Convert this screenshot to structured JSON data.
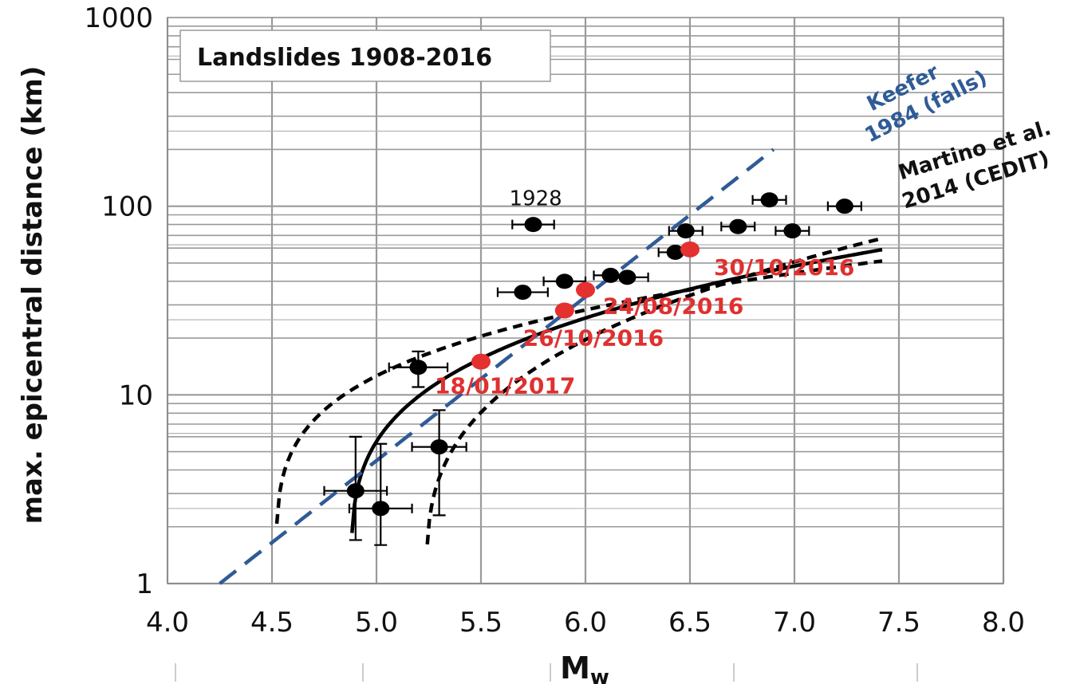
{
  "chart_data": {
    "type": "scatter",
    "title": "Landslides 1908-2016",
    "xlabel": "M",
    "xlabel_sub": "w",
    "ylabel": "max. epicentral distance (km)",
    "xlim": [
      4.0,
      8.0
    ],
    "ylim": [
      1,
      1000
    ],
    "yscale": "log",
    "grid": true,
    "x_ticks": [
      "4.0",
      "4.5",
      "5.0",
      "5.5",
      "6.0",
      "6.5",
      "7.0",
      "7.5",
      "8.0"
    ],
    "y_ticks": [
      "1",
      "10",
      "100",
      "1000"
    ],
    "colors": {
      "historical": "#000000",
      "recent": "#e53030",
      "keefer": "#2f5b96",
      "cedit": "#000000",
      "grid": "#9a9a9a"
    },
    "series": [
      {
        "kind": "historical",
        "points": [
          {
            "x": 4.9,
            "y": 3.1,
            "xerr": 0.15,
            "ylo": 1.7,
            "yhi": 6.0
          },
          {
            "x": 5.02,
            "y": 2.5,
            "xerr": 0.15,
            "ylo": 1.6,
            "yhi": 5.5
          },
          {
            "x": 5.2,
            "y": 14,
            "xerr": 0.14,
            "ylo": 11,
            "yhi": 17
          },
          {
            "x": 5.3,
            "y": 5.3,
            "xerr": 0.13,
            "ylo": 2.3,
            "yhi": 8.3
          },
          {
            "x": 5.7,
            "y": 35,
            "xerr": 0.12,
            "ylo": null,
            "yhi": null
          },
          {
            "x": 5.75,
            "y": 80,
            "xerr": 0.1,
            "ylo": null,
            "yhi": null,
            "label": "1928"
          },
          {
            "x": 5.9,
            "y": 40,
            "xerr": 0.1,
            "ylo": null,
            "yhi": null
          },
          {
            "x": 6.12,
            "y": 43,
            "xerr": 0.08,
            "ylo": null,
            "yhi": null
          },
          {
            "x": 6.2,
            "y": 42,
            "xerr": 0.1,
            "ylo": null,
            "yhi": null
          },
          {
            "x": 6.43,
            "y": 57,
            "xerr": 0.08,
            "ylo": null,
            "yhi": null
          },
          {
            "x": 6.48,
            "y": 74,
            "xerr": 0.08,
            "ylo": null,
            "yhi": null
          },
          {
            "x": 6.73,
            "y": 78,
            "xerr": 0.08,
            "ylo": null,
            "yhi": null
          },
          {
            "x": 6.88,
            "y": 108,
            "xerr": 0.08,
            "ylo": null,
            "yhi": null
          },
          {
            "x": 6.99,
            "y": 74,
            "xerr": 0.08,
            "ylo": null,
            "yhi": null
          },
          {
            "x": 7.24,
            "y": 100,
            "xerr": 0.08,
            "ylo": null,
            "yhi": null
          }
        ]
      },
      {
        "kind": "recent",
        "points": [
          {
            "x": 6.5,
            "y": 59,
            "label": "30/10/2016"
          },
          {
            "x": 6.0,
            "y": 36,
            "label": "24/08/2016"
          },
          {
            "x": 5.9,
            "y": 28,
            "label": "26/10/2016"
          },
          {
            "x": 5.5,
            "y": 15,
            "label": "18/01/2017"
          }
        ]
      }
    ],
    "curves": {
      "keefer": {
        "label_line1": "Keefer",
        "label_line2": "1984 (falls)",
        "x0": 4.25,
        "x1": 6.9,
        "a": 0.5,
        "b": 0.42
      },
      "cedit": {
        "label_line1": "Martino et al.",
        "label_line2": "2014 (CEDIT)",
        "mid": {
          "mc": 4.88,
          "x1": 7.42,
          "logscale": 1.8,
          "b": 1.77,
          "p": 0.28
        },
        "upper": {
          "mc": 4.52,
          "x1": 7.42,
          "logscale": 1.8,
          "b": 1.71,
          "p": 0.245
        },
        "lower": {
          "mc": 5.24,
          "x1": 7.42,
          "logscale": 1.8,
          "b": 1.83,
          "p": 0.33
        }
      }
    }
  }
}
